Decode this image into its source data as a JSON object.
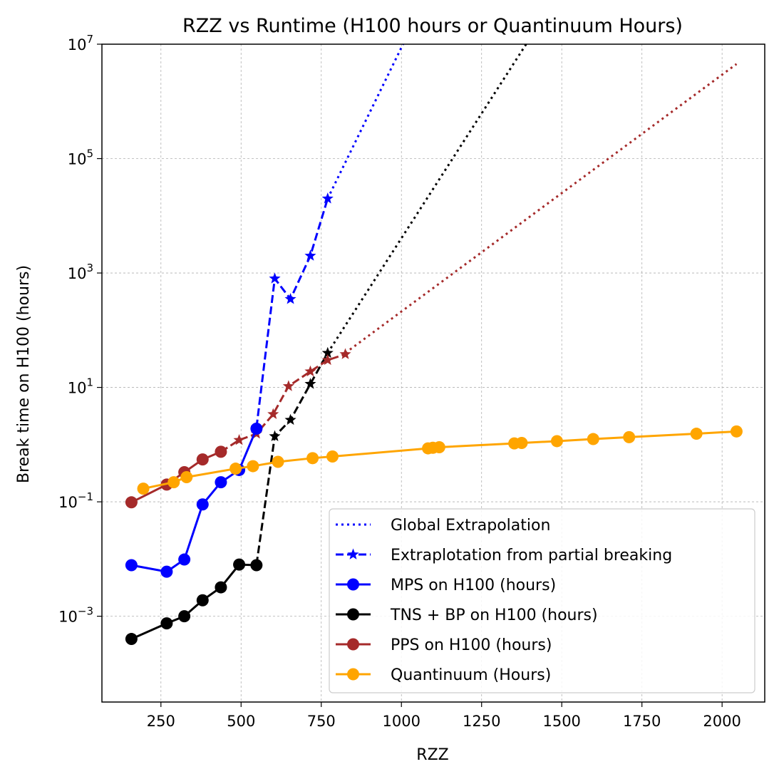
{
  "chart_data": {
    "type": "line",
    "title": "RZZ vs Runtime (H100 hours or Quantinuum Hours)",
    "xlabel": "RZZ",
    "ylabel": "Break time on H100 (hours)",
    "xlim": [
      66,
      2133
    ],
    "ylim_log10": [
      -4.5,
      7
    ],
    "yscale": "log",
    "grid": true,
    "legend_position": "lower-right",
    "x_ticks": [
      {
        "value": 250,
        "label": "250"
      },
      {
        "value": 500,
        "label": "500"
      },
      {
        "value": 750,
        "label": "750"
      },
      {
        "value": 1000,
        "label": "1000"
      },
      {
        "value": 1250,
        "label": "1250"
      },
      {
        "value": 1500,
        "label": "1500"
      },
      {
        "value": 1750,
        "label": "1750"
      },
      {
        "value": 2000,
        "label": "2000"
      }
    ],
    "y_ticks": [
      {
        "exp": 7,
        "base": "10",
        "sup": "7"
      },
      {
        "exp": 5,
        "base": "10",
        "sup": "5"
      },
      {
        "exp": 3,
        "base": "10",
        "sup": "3"
      },
      {
        "exp": 1,
        "base": "10",
        "sup": "1"
      },
      {
        "exp": -1,
        "base": "10",
        "sup": "−1"
      },
      {
        "exp": -3,
        "base": "10",
        "sup": "−3"
      }
    ],
    "legend": [
      {
        "label": "Global Extrapolation",
        "color": "#0000ff",
        "style": "dotted",
        "marker": "none"
      },
      {
        "label": "Extraplotation from partial breaking",
        "color": "#0000ff",
        "style": "dashed",
        "marker": "star"
      },
      {
        "label": "MPS on H100 (hours)",
        "color": "#0000ff",
        "style": "solid",
        "marker": "circle"
      },
      {
        "label": "TNS + BP on H100 (hours)",
        "color": "#000000",
        "style": "solid",
        "marker": "circle"
      },
      {
        "label": "PPS on H100 (hours)",
        "color": "#a52a2a",
        "style": "solid",
        "marker": "circle"
      },
      {
        "label": "Quantinuum (Hours)",
        "color": "#ffa500",
        "style": "solid",
        "marker": "circle"
      }
    ],
    "series": [
      {
        "name": "MPS global extrapolation",
        "color": "#0000ff",
        "style": "dotted",
        "marker": "none",
        "x": [
          770,
          1012
        ],
        "y": [
          20000,
          12000000
        ]
      },
      {
        "name": "TNS + BP global extrapolation",
        "color": "#000000",
        "style": "dotted",
        "marker": "none",
        "x": [
          770,
          1398
        ],
        "y": [
          40,
          12000000
        ]
      },
      {
        "name": "PPS global extrapolation",
        "color": "#a52a2a",
        "style": "dotted",
        "marker": "none",
        "x": [
          825,
          2045
        ],
        "y": [
          40,
          4500000
        ]
      },
      {
        "name": "MPS partial-breaking extrapolation",
        "color": "#0000ff",
        "style": "dashed",
        "marker": "star",
        "x": [
          548,
          605,
          654,
          716,
          770
        ],
        "y": [
          2.0,
          800,
          350,
          2000,
          20000
        ]
      },
      {
        "name": "TNS + BP partial-breaking extrapolation",
        "color": "#000000",
        "style": "dashed",
        "marker": "star",
        "x": [
          548,
          605,
          654,
          716,
          770
        ],
        "y": [
          0.008,
          1.4,
          2.7,
          11.5,
          40
        ]
      },
      {
        "name": "PPS partial-breaking extrapolation",
        "color": "#a52a2a",
        "style": "dashed",
        "marker": "star",
        "x": [
          437,
          494,
          548,
          600,
          648,
          716,
          770,
          825
        ],
        "y": [
          0.75,
          1.2,
          1.55,
          3.4,
          10.5,
          19,
          30,
          38
        ]
      },
      {
        "name": "MPS on H100 (hours)",
        "color": "#0000ff",
        "style": "solid",
        "marker": "circle",
        "x": [
          158,
          268,
          323,
          380,
          437,
          494,
          548
        ],
        "y": [
          0.0078,
          0.006,
          0.0098,
          0.09,
          0.22,
          0.36,
          1.9
        ]
      },
      {
        "name": "TNS + BP on H100 (hours)",
        "color": "#000000",
        "style": "solid",
        "marker": "circle",
        "x": [
          158,
          268,
          323,
          380,
          437,
          494,
          548
        ],
        "y": [
          0.0004,
          0.00075,
          0.001,
          0.0019,
          0.0032,
          0.008,
          0.0078
        ]
      },
      {
        "name": "PPS on H100 (hours)",
        "color": "#a52a2a",
        "style": "solid",
        "marker": "circle",
        "x": [
          158,
          268,
          323,
          380,
          437
        ],
        "y": [
          0.098,
          0.2,
          0.33,
          0.55,
          0.75
        ]
      },
      {
        "name": "Quantinuum (Hours)",
        "color": "#ffa500",
        "style": "solid",
        "marker": "circle",
        "x": [
          195,
          290,
          330,
          483,
          537,
          615,
          723,
          785,
          1083,
          1098,
          1118,
          1352,
          1375,
          1485,
          1598,
          1710,
          1920,
          2045
        ],
        "y": [
          0.17,
          0.22,
          0.27,
          0.38,
          0.42,
          0.5,
          0.58,
          0.62,
          0.86,
          0.88,
          0.9,
          1.05,
          1.07,
          1.15,
          1.25,
          1.35,
          1.55,
          1.7
        ]
      }
    ]
  }
}
